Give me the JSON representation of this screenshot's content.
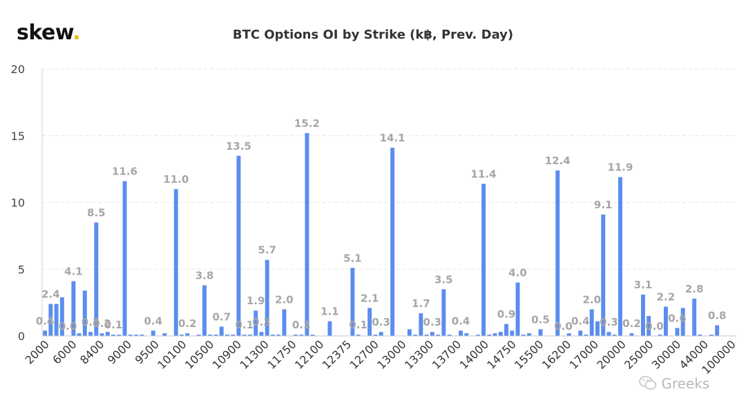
{
  "brand": {
    "name": "skew",
    "dot": "."
  },
  "watermark": {
    "icon": "wechat-icon",
    "text": "Greeks"
  },
  "chart_data": {
    "type": "bar",
    "title": "BTC Options OI by Strike (k฿, Prev. Day)",
    "xlabel": "",
    "ylabel": "",
    "ylim": [
      0,
      20
    ],
    "yticks": [
      0,
      5,
      10,
      15,
      20
    ],
    "grid": true,
    "legend": "none",
    "bar_color": "#5b8def",
    "label_color": "#a6a6a6",
    "x_tick_labels": [
      "2000",
      "6000",
      "8400",
      "9000",
      "9500",
      "10100",
      "10500",
      "10900",
      "11300",
      "11750",
      "12100",
      "12375",
      "12700",
      "13000",
      "13300",
      "13700",
      "14000",
      "14750",
      "15500",
      "16200",
      "17000",
      "20000",
      "25000",
      "30000",
      "44000",
      "100000"
    ],
    "values": [
      0.4,
      2.4,
      2.4,
      2.9,
      0.0,
      4.1,
      0.2,
      3.4,
      0.3,
      8.5,
      0.2,
      0.3,
      0.1,
      0.1,
      11.6,
      0.1,
      0.1,
      0.1,
      0.0,
      0.4,
      0.0,
      0.2,
      0.0,
      11.0,
      0.1,
      0.2,
      0.0,
      0.1,
      3.8,
      0.1,
      0.1,
      0.7,
      0.1,
      0.1,
      13.5,
      0.1,
      0.1,
      1.9,
      0.3,
      5.7,
      0.1,
      0.1,
      2.0,
      0.0,
      0.1,
      0.1,
      15.2,
      0.1,
      0.0,
      0.0,
      1.1,
      0.0,
      0.0,
      0.0,
      5.1,
      0.1,
      0.0,
      2.1,
      0.1,
      0.3,
      0.0,
      14.1,
      0.0,
      0.0,
      0.5,
      0.1,
      1.7,
      0.1,
      0.3,
      0.1,
      3.5,
      0.1,
      0.0,
      0.4,
      0.2,
      0.0,
      0.1,
      11.4,
      0.1,
      0.2,
      0.3,
      0.9,
      0.4,
      4.0,
      0.1,
      0.2,
      0.0,
      0.5,
      0.0,
      0.0,
      12.4,
      0.0,
      0.2,
      0.0,
      0.4,
      0.1,
      2.0,
      1.1,
      9.1,
      0.3,
      0.1,
      11.9,
      0.0,
      0.2,
      0.0,
      3.1,
      1.5,
      0.0,
      0.1,
      2.2,
      0.0,
      0.6,
      2.1,
      0.0,
      2.8,
      0.1,
      0.0,
      0.1,
      0.8,
      0.0,
      0.0,
      0.0
    ],
    "data_labels": [
      {
        "index": 0,
        "text": "0.4"
      },
      {
        "index": 1,
        "text": "2.4"
      },
      {
        "index": 4,
        "text": "0.0"
      },
      {
        "index": 5,
        "text": "4.1"
      },
      {
        "index": 8,
        "text": "0.3"
      },
      {
        "index": 9,
        "text": "8.5"
      },
      {
        "index": 10,
        "text": "0.2"
      },
      {
        "index": 12,
        "text": "0.1"
      },
      {
        "index": 14,
        "text": "11.6"
      },
      {
        "index": 19,
        "text": "0.4"
      },
      {
        "index": 23,
        "text": "11.0"
      },
      {
        "index": 25,
        "text": "0.2"
      },
      {
        "index": 28,
        "text": "3.8"
      },
      {
        "index": 31,
        "text": "0.7"
      },
      {
        "index": 34,
        "text": "13.5"
      },
      {
        "index": 35,
        "text": "0.1"
      },
      {
        "index": 37,
        "text": "1.9"
      },
      {
        "index": 38,
        "text": "0.3"
      },
      {
        "index": 39,
        "text": "5.7"
      },
      {
        "index": 42,
        "text": "2.0"
      },
      {
        "index": 45,
        "text": "0.1"
      },
      {
        "index": 46,
        "text": "15.2"
      },
      {
        "index": 50,
        "text": "1.1"
      },
      {
        "index": 54,
        "text": "5.1"
      },
      {
        "index": 55,
        "text": "0.1"
      },
      {
        "index": 57,
        "text": "2.1"
      },
      {
        "index": 59,
        "text": "0.3"
      },
      {
        "index": 61,
        "text": "14.1"
      },
      {
        "index": 66,
        "text": "1.7"
      },
      {
        "index": 68,
        "text": "0.3"
      },
      {
        "index": 70,
        "text": "3.5"
      },
      {
        "index": 73,
        "text": "0.4"
      },
      {
        "index": 77,
        "text": "11.4"
      },
      {
        "index": 81,
        "text": "0.9"
      },
      {
        "index": 83,
        "text": "4.0"
      },
      {
        "index": 87,
        "text": "0.5"
      },
      {
        "index": 90,
        "text": "12.4"
      },
      {
        "index": 91,
        "text": "0.0"
      },
      {
        "index": 94,
        "text": "0.4"
      },
      {
        "index": 96,
        "text": "2.0"
      },
      {
        "index": 98,
        "text": "9.1"
      },
      {
        "index": 99,
        "text": "0.3"
      },
      {
        "index": 101,
        "text": "11.9"
      },
      {
        "index": 103,
        "text": "0.2"
      },
      {
        "index": 105,
        "text": "3.1"
      },
      {
        "index": 107,
        "text": "0.0"
      },
      {
        "index": 109,
        "text": "2.2"
      },
      {
        "index": 111,
        "text": "0.6"
      },
      {
        "index": 114,
        "text": "2.8"
      },
      {
        "index": 118,
        "text": "0.8"
      }
    ]
  }
}
